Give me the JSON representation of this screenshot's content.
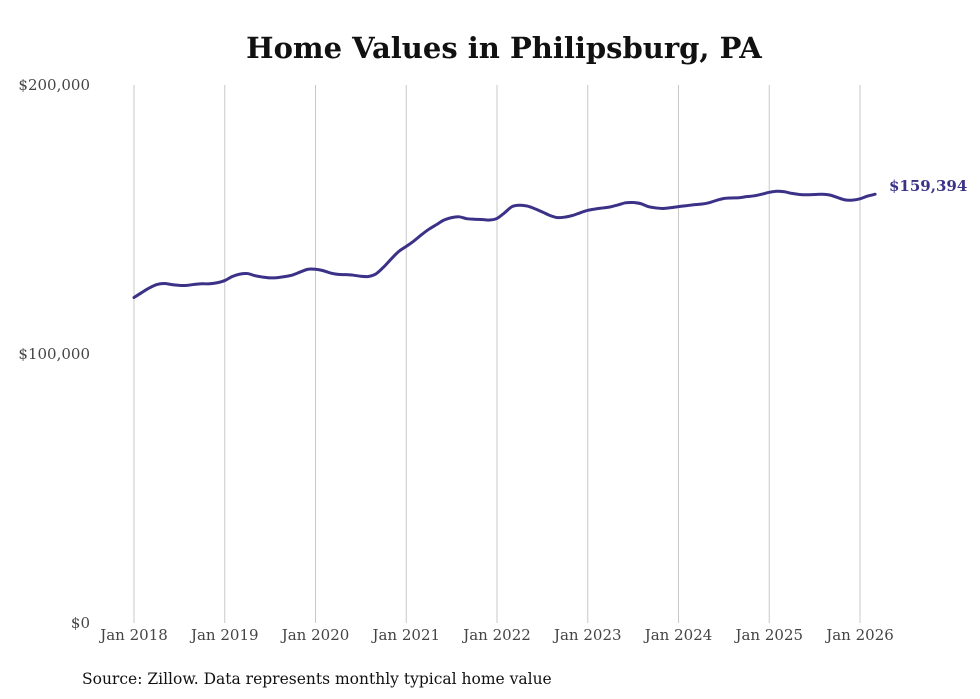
{
  "chart_data": {
    "type": "line",
    "title": "Home Values in Philipsburg, PA",
    "xlabel": "",
    "ylabel": "",
    "ylim": [
      0,
      200000
    ],
    "y_ticks": [
      {
        "value": 0,
        "label": "$0"
      },
      {
        "value": 100000,
        "label": "$100,000"
      },
      {
        "value": 200000,
        "label": "$200,000"
      }
    ],
    "x_ticks": [
      {
        "value": "2018-01",
        "label": "Jan 2018"
      },
      {
        "value": "2019-01",
        "label": "Jan 2019"
      },
      {
        "value": "2020-01",
        "label": "Jan 2020"
      },
      {
        "value": "2021-01",
        "label": "Jan 2021"
      },
      {
        "value": "2022-01",
        "label": "Jan 2022"
      },
      {
        "value": "2023-01",
        "label": "Jan 2023"
      },
      {
        "value": "2024-01",
        "label": "Jan 2024"
      },
      {
        "value": "2025-01",
        "label": "Jan 2025"
      },
      {
        "value": "2026-01",
        "label": "Jan 2026"
      }
    ],
    "grid": "vertical",
    "line_color": "#3b3288",
    "end_label": "$159,394",
    "series": [
      {
        "x": [
          "2018-01",
          "2018-02",
          "2018-03",
          "2018-04",
          "2018-05",
          "2018-06",
          "2018-07",
          "2018-08",
          "2018-09",
          "2018-10",
          "2018-11",
          "2018-12",
          "2019-01",
          "2019-02",
          "2019-03",
          "2019-04",
          "2019-05",
          "2019-06",
          "2019-07",
          "2019-08",
          "2019-09",
          "2019-10",
          "2019-11",
          "2019-12",
          "2020-01",
          "2020-02",
          "2020-03",
          "2020-04",
          "2020-05",
          "2020-06",
          "2020-07",
          "2020-08",
          "2020-09",
          "2020-10",
          "2020-11",
          "2020-12",
          "2021-01",
          "2021-02",
          "2021-03",
          "2021-04",
          "2021-05",
          "2021-06",
          "2021-07",
          "2021-08",
          "2021-09",
          "2021-10",
          "2021-11",
          "2021-12",
          "2022-01",
          "2022-02",
          "2022-03",
          "2022-04",
          "2022-05",
          "2022-06",
          "2022-07",
          "2022-08",
          "2022-09",
          "2022-10",
          "2022-11",
          "2022-12",
          "2023-01",
          "2023-02",
          "2023-03",
          "2023-04",
          "2023-05",
          "2023-06",
          "2023-07",
          "2023-08",
          "2023-09",
          "2023-10",
          "2023-11",
          "2023-12",
          "2024-01",
          "2024-02",
          "2024-03",
          "2024-04",
          "2024-05",
          "2024-06",
          "2024-07",
          "2024-08",
          "2024-09",
          "2024-10",
          "2024-11",
          "2024-12",
          "2025-01",
          "2025-02",
          "2025-03",
          "2025-04",
          "2025-05",
          "2025-06",
          "2025-07",
          "2025-08",
          "2025-09",
          "2025-10",
          "2025-11",
          "2025-12",
          "2026-01",
          "2026-02",
          "2026-03"
        ],
        "values": [
          121000,
          122800,
          124500,
          125800,
          126200,
          125800,
          125500,
          125500,
          125900,
          126100,
          126100,
          126500,
          127300,
          128800,
          129700,
          129900,
          129100,
          128600,
          128300,
          128400,
          128800,
          129400,
          130500,
          131500,
          131500,
          131000,
          130100,
          129600,
          129500,
          129300,
          128900,
          128800,
          129800,
          132300,
          135300,
          138100,
          140000,
          142000,
          144300,
          146400,
          148100,
          149800,
          150700,
          151000,
          150300,
          150100,
          150000,
          149800,
          150400,
          152500,
          154800,
          155300,
          155000,
          154000,
          152800,
          151500,
          150700,
          150900,
          151500,
          152500,
          153400,
          153900,
          154300,
          154700,
          155400,
          156200,
          156300,
          155900,
          154800,
          154300,
          154100,
          154400,
          154800,
          155100,
          155500,
          155700,
          156200,
          157100,
          157800,
          158000,
          158100,
          158500,
          158800,
          159400,
          160100,
          160500,
          160300,
          159700,
          159300,
          159200,
          159300,
          159400,
          159100,
          158200,
          157300,
          157200,
          157700,
          158700,
          159394
        ]
      }
    ]
  },
  "footer": {
    "source": "Source: Zillow. Data represents monthly typical home value"
  }
}
